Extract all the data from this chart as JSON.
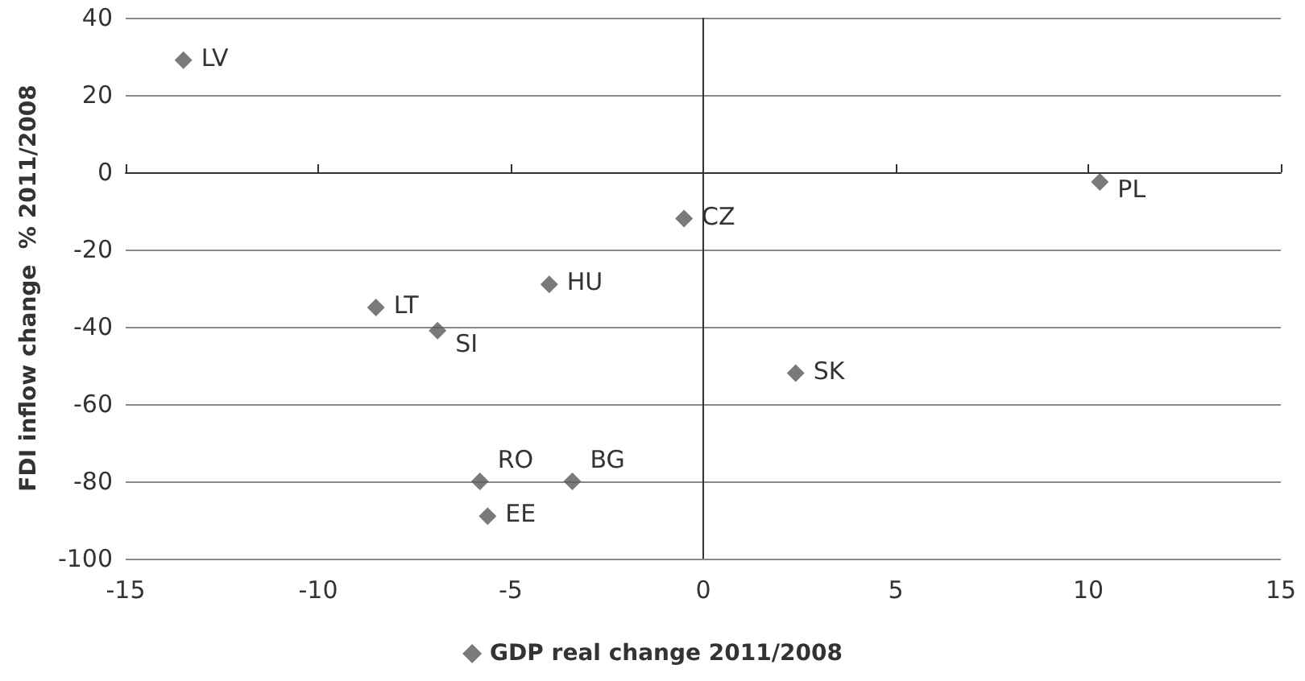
{
  "chart_data": {
    "type": "scatter",
    "ylabel": "FDI inflow change  % 2011/2008",
    "series": [
      {
        "name": "GDP real change 2011/2008",
        "color": "#595959",
        "x": [
          -13.5,
          -8.5,
          -6.9,
          -4.0,
          -5.8,
          -5.6,
          -3.4,
          -0.5,
          2.4,
          10.3
        ],
        "values": [
          29,
          -35,
          -41,
          -29,
          -80,
          -89,
          -80,
          -12,
          -52,
          -2.5
        ]
      }
    ],
    "annotations": [
      {
        "text": "LV",
        "x": -13.5,
        "y": 29
      },
      {
        "text": "LT",
        "x": -8.5,
        "y": -35
      },
      {
        "text": "SI",
        "x": -6.9,
        "y": -41
      },
      {
        "text": "HU",
        "x": -4.0,
        "y": -29
      },
      {
        "text": "RO",
        "x": -5.8,
        "y": -80
      },
      {
        "text": "EE",
        "x": -5.6,
        "y": -89
      },
      {
        "text": "BG",
        "x": -3.4,
        "y": -80
      },
      {
        "text": "CZ",
        "x": -0.5,
        "y": -12
      },
      {
        "text": "SK",
        "x": 2.4,
        "y": -52
      },
      {
        "text": "PL",
        "x": 10.3,
        "y": -2.5
      }
    ],
    "xlim": [
      -15,
      15
    ],
    "xticks": [
      -15,
      -10,
      -5,
      0,
      5,
      10,
      15
    ],
    "ylim": [
      -100,
      40
    ],
    "yticks": [
      -100,
      -80,
      -60,
      -40,
      -20,
      0,
      20,
      40
    ],
    "ref_lines": [
      {
        "axis": "x",
        "value": 0
      }
    ],
    "grid": "y",
    "legend": "bottom",
    "marker": "diamond"
  }
}
